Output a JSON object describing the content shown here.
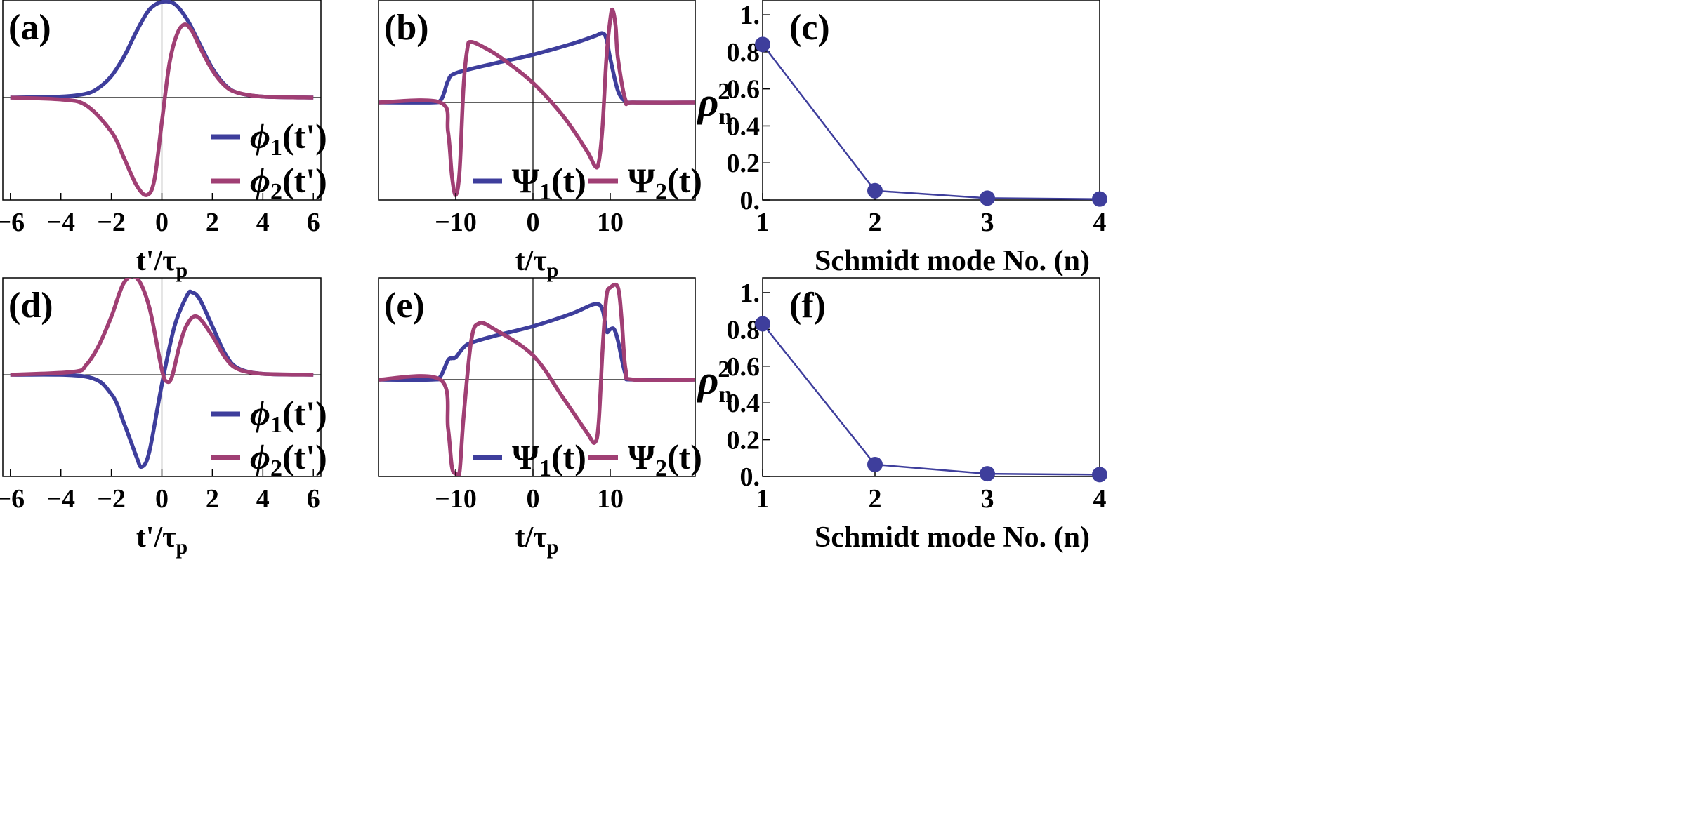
{
  "colors": {
    "blue": "#3e3e9c",
    "magenta": "#a03f74"
  },
  "chart_data": [
    {
      "id": "a",
      "type": "line",
      "panel_label": "(a)",
      "xlabel": "t'/τ",
      "xlabel_sub": "p",
      "ylabel": "",
      "xlim": [
        -6.3,
        6.3
      ],
      "ylim": [
        -1.05,
        1.0
      ],
      "xticks": [
        "−6",
        "−4",
        "−2",
        "0",
        "2",
        "4",
        "6"
      ],
      "legend_position": "bottom-right",
      "series": [
        {
          "name": "ϕ",
          "name_sub": "1",
          "name_arg": "(t')",
          "color_key": "blue",
          "x": [
            -6,
            -4,
            -3,
            -2.5,
            -2,
            -1.5,
            -1,
            -0.5,
            0,
            0.5,
            1,
            1.5,
            2,
            2.5,
            3,
            4,
            6
          ],
          "y": [
            0,
            0.01,
            0.04,
            0.1,
            0.22,
            0.42,
            0.68,
            0.9,
            0.98,
            0.96,
            0.8,
            0.55,
            0.3,
            0.13,
            0.05,
            0.01,
            0
          ]
        },
        {
          "name": "ϕ",
          "name_sub": "2",
          "name_arg": "(t')",
          "color_key": "magenta",
          "x": [
            -6,
            -4,
            -3,
            -2,
            -1.5,
            -1,
            -0.6,
            -0.3,
            0,
            0.3,
            0.6,
            0.9,
            1.2,
            1.5,
            2,
            2.5,
            3,
            4,
            6
          ],
          "y": [
            0,
            -0.02,
            -0.08,
            -0.35,
            -0.62,
            -0.9,
            -1.0,
            -0.85,
            -0.25,
            0.35,
            0.65,
            0.75,
            0.68,
            0.52,
            0.28,
            0.12,
            0.05,
            0.01,
            0
          ]
        }
      ]
    },
    {
      "id": "b",
      "type": "line",
      "panel_label": "(b)",
      "xlabel": "t/τ",
      "xlabel_sub": "p",
      "ylabel": "",
      "xlim": [
        -20,
        21
      ],
      "ylim": [
        -1.0,
        1.05
      ],
      "xticks": [
        "−10",
        "0",
        "10"
      ],
      "legend_position": "bottom-right",
      "series": [
        {
          "name": "Ψ",
          "name_sub": "1",
          "name_arg": "(t)",
          "color_key": "blue",
          "x": [
            -20,
            -13,
            -12,
            -11.5,
            -11,
            -10,
            -5,
            0,
            5,
            8,
            9,
            9.5,
            10,
            11,
            12,
            13,
            21
          ],
          "y": [
            0,
            0,
            0.02,
            0.1,
            0.22,
            0.3,
            0.4,
            0.49,
            0.6,
            0.68,
            0.71,
            0.65,
            0.45,
            0.12,
            0.01,
            0,
            0
          ]
        },
        {
          "name": "Ψ",
          "name_sub": "2",
          "name_arg": "(t)",
          "color_key": "magenta",
          "x": [
            -20,
            -12,
            -11,
            -10.5,
            -10,
            -9.5,
            -9,
            -8.5,
            -8,
            -6,
            -4,
            0,
            4,
            7,
            8,
            8.5,
            9,
            9.5,
            10,
            10.3,
            10.7,
            11,
            12,
            13,
            21
          ],
          "y": [
            0,
            0,
            -0.3,
            -0.75,
            -0.95,
            -0.7,
            0.15,
            0.55,
            0.62,
            0.55,
            0.45,
            0.2,
            -0.15,
            -0.5,
            -0.65,
            -0.62,
            -0.25,
            0.45,
            0.85,
            0.95,
            0.78,
            0.45,
            0.02,
            0,
            0
          ]
        }
      ]
    },
    {
      "id": "c",
      "type": "scatter",
      "panel_label": "(c)",
      "xlabel": "Schmidt mode No. (n)",
      "ylabel": "ρ",
      "ylabel_sub": "n",
      "ylabel_sup": "2",
      "xlim": [
        1,
        4
      ],
      "ylim": [
        0,
        1.08
      ],
      "xticks": [
        "1",
        "2",
        "3",
        "4"
      ],
      "yticks": [
        "0.",
        "0.2",
        "0.4",
        "0.6",
        "0.8",
        "1."
      ],
      "color_key": "blue",
      "x": [
        1,
        2,
        3,
        4
      ],
      "y": [
        0.84,
        0.05,
        0.01,
        0.005
      ]
    },
    {
      "id": "d",
      "type": "line",
      "panel_label": "(d)",
      "xlabel": "t'/τ",
      "xlabel_sub": "p",
      "ylabel": "",
      "xlim": [
        -6.3,
        6.3
      ],
      "ylim": [
        -1.05,
        1.0
      ],
      "xticks": [
        "−6",
        "−4",
        "−2",
        "0",
        "2",
        "4",
        "6"
      ],
      "legend_position": "bottom-right",
      "series": [
        {
          "name": "ϕ",
          "name_sub": "1",
          "name_arg": "(t')",
          "color_key": "blue",
          "x": [
            -6,
            -3,
            -2,
            -1.5,
            -1,
            -0.8,
            -0.5,
            0,
            0.5,
            1,
            1.2,
            1.5,
            2,
            2.5,
            3,
            4,
            6
          ],
          "y": [
            0,
            -0.02,
            -0.2,
            -0.5,
            -0.85,
            -0.95,
            -0.8,
            -0.1,
            0.5,
            0.82,
            0.85,
            0.78,
            0.5,
            0.22,
            0.07,
            0.01,
            0
          ]
        },
        {
          "name": "ϕ",
          "name_sub": "2",
          "name_arg": "(t')",
          "color_key": "magenta",
          "x": [
            -6,
            -3.5,
            -3,
            -2.5,
            -2,
            -1.5,
            -1,
            -0.5,
            0,
            0.2,
            0.4,
            0.7,
            1,
            1.4,
            2,
            2.5,
            3,
            4,
            6
          ],
          "y": [
            0,
            0.03,
            0.1,
            0.3,
            0.6,
            0.95,
            1.0,
            0.7,
            0.05,
            -0.07,
            -0.02,
            0.3,
            0.52,
            0.6,
            0.4,
            0.18,
            0.06,
            0.01,
            0
          ]
        }
      ]
    },
    {
      "id": "e",
      "type": "line",
      "panel_label": "(e)",
      "xlabel": "t/τ",
      "xlabel_sub": "p",
      "ylabel": "",
      "xlim": [
        -20,
        21
      ],
      "ylim": [
        -1.0,
        1.05
      ],
      "xticks": [
        "−10",
        "0",
        "10"
      ],
      "legend_position": "bottom-right",
      "series": [
        {
          "name": "Ψ",
          "name_sub": "1",
          "name_arg": "(t)",
          "color_key": "blue",
          "x": [
            -20,
            -13,
            -12,
            -11,
            -10.5,
            -10,
            -9,
            -8,
            -5,
            0,
            5,
            8,
            9,
            9.5,
            10,
            10.5,
            11,
            12,
            13,
            21
          ],
          "y": [
            0,
            0,
            0.03,
            0.2,
            0.22,
            0.23,
            0.33,
            0.38,
            0.45,
            0.55,
            0.68,
            0.78,
            0.72,
            0.5,
            0.52,
            0.52,
            0.4,
            0.05,
            0,
            0
          ]
        },
        {
          "name": "Ψ",
          "name_sub": "2",
          "name_arg": "(t)",
          "color_key": "magenta",
          "x": [
            -20,
            -12,
            -11,
            -10.5,
            -10,
            -9.5,
            -9,
            -8,
            -7,
            -5,
            0,
            4,
            7,
            8,
            8.5,
            9,
            9.5,
            10,
            11,
            11.5,
            12,
            13,
            21
          ],
          "y": [
            0,
            0,
            -0.5,
            -0.9,
            -0.97,
            -0.95,
            -0.4,
            0.4,
            0.58,
            0.52,
            0.25,
            -0.2,
            -0.55,
            -0.65,
            -0.45,
            0.3,
            0.85,
            0.95,
            0.95,
            0.6,
            0.1,
            0,
            0
          ]
        }
      ]
    },
    {
      "id": "f",
      "type": "scatter",
      "panel_label": "(f)",
      "xlabel": "Schmidt mode No. (n)",
      "ylabel": "ρ",
      "ylabel_sub": "n",
      "ylabel_sup": "2",
      "xlim": [
        1,
        4
      ],
      "ylim": [
        0,
        1.08
      ],
      "xticks": [
        "1",
        "2",
        "3",
        "4"
      ],
      "yticks": [
        "0.",
        "0.2",
        "0.4",
        "0.6",
        "0.8",
        "1."
      ],
      "color_key": "blue",
      "x": [
        1,
        2,
        3,
        4
      ],
      "y": [
        0.83,
        0.065,
        0.015,
        0.01
      ]
    }
  ]
}
